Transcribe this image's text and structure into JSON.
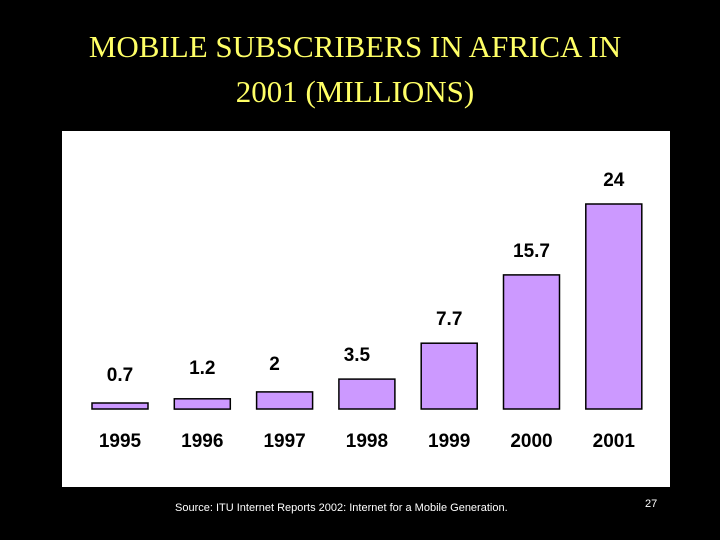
{
  "slide": {
    "title_line1": "MOBILE SUBSCRIBERS IN AFRICA IN",
    "title_line2": "2001 (MILLIONS)",
    "source": "Source: ITU Internet Reports 2002: Internet for a Mobile Generation.",
    "page_number": "27"
  },
  "colors": {
    "background": "#000000",
    "title": "#ffff66",
    "panel": "#ffffff",
    "bar_fill": "#cc99ff",
    "bar_stroke": "#000000"
  },
  "chart_data": {
    "type": "bar",
    "categories": [
      "1995",
      "1996",
      "1997",
      "1998",
      "1999",
      "2000",
      "2001"
    ],
    "values": [
      0.7,
      1.2,
      2,
      3.5,
      7.7,
      15.7,
      24
    ],
    "data_labels": [
      "0.7",
      "1.2",
      "2",
      "3.5",
      "7.7",
      "15.7",
      "24"
    ],
    "title": "MOBILE SUBSCRIBERS IN AFRICA IN 2001 (MILLIONS)",
    "xlabel": "",
    "ylabel": "",
    "ylim": [
      0,
      24
    ],
    "grid": false,
    "legend": "none"
  }
}
